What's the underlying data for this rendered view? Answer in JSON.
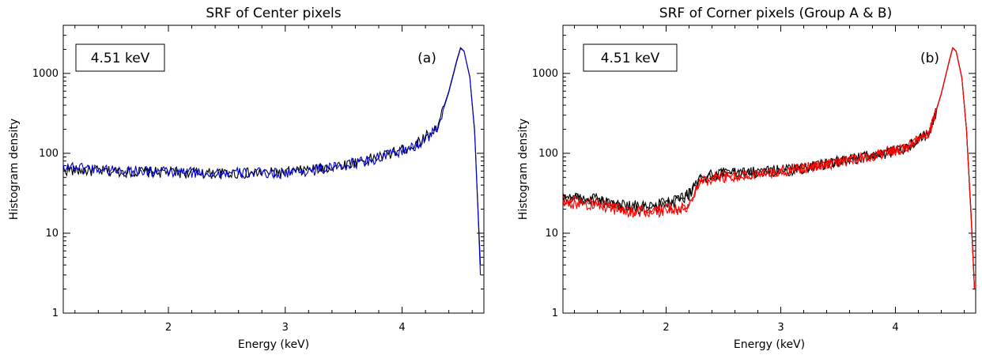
{
  "chart_data": [
    {
      "type": "line",
      "title": "SRF of Center pixels",
      "xlabel": "Energy (keV)",
      "ylabel": "Histogram density",
      "xlim": [
        1.1,
        4.7
      ],
      "ylim": [
        1,
        4000
      ],
      "y_scale": "log",
      "x_ticks": [
        "2",
        "3",
        "4"
      ],
      "y_ticks": [
        "1",
        "10",
        "100",
        "1000"
      ],
      "grid": false,
      "energy_label": "4.51 keV",
      "panel_label": "(a)",
      "series": [
        {
          "color": "#000000",
          "points": [
            [
              1.1,
              62
            ],
            [
              1.5,
              60
            ],
            [
              2.0,
              58
            ],
            [
              2.5,
              56
            ],
            [
              3.0,
              58
            ],
            [
              3.4,
              68
            ],
            [
              3.8,
              90
            ],
            [
              4.1,
              125
            ],
            [
              4.3,
              210
            ],
            [
              4.4,
              600
            ],
            [
              4.47,
              1500
            ],
            [
              4.5,
              2100
            ],
            [
              4.53,
              1900
            ],
            [
              4.58,
              900
            ],
            [
              4.62,
              200
            ],
            [
              4.65,
              20
            ],
            [
              4.67,
              4
            ]
          ]
        },
        {
          "color": "#0000cc",
          "points": [
            [
              1.1,
              70
            ],
            [
              1.5,
              62
            ],
            [
              2.0,
              59
            ],
            [
              2.5,
              57
            ],
            [
              3.0,
              57
            ],
            [
              3.4,
              66
            ],
            [
              3.8,
              88
            ],
            [
              4.1,
              120
            ],
            [
              4.3,
              200
            ],
            [
              4.4,
              580
            ],
            [
              4.47,
              1450
            ],
            [
              4.5,
              2050
            ],
            [
              4.53,
              1900
            ],
            [
              4.58,
              880
            ],
            [
              4.62,
              190
            ],
            [
              4.65,
              18
            ],
            [
              4.67,
              3
            ]
          ]
        }
      ]
    },
    {
      "type": "line",
      "title": "SRF of Corner pixels (Group A & B)",
      "xlabel": "Energy (keV)",
      "ylabel": "Histogram density",
      "xlim": [
        1.1,
        4.7
      ],
      "ylim": [
        1,
        4000
      ],
      "y_scale": "log",
      "x_ticks": [
        "2",
        "3",
        "4"
      ],
      "y_ticks": [
        "1",
        "10",
        "100",
        "1000"
      ],
      "grid": false,
      "energy_label": "4.51 keV",
      "panel_label": "(b)",
      "series": [
        {
          "color": "#000000",
          "points": [
            [
              1.1,
              30
            ],
            [
              1.4,
              25
            ],
            [
              1.7,
              22
            ],
            [
              2.0,
              24
            ],
            [
              2.2,
              32
            ],
            [
              2.3,
              48
            ],
            [
              2.5,
              55
            ],
            [
              3.0,
              62
            ],
            [
              3.4,
              75
            ],
            [
              3.8,
              95
            ],
            [
              4.1,
              120
            ],
            [
              4.3,
              190
            ],
            [
              4.4,
              560
            ],
            [
              4.47,
              1450
            ],
            [
              4.5,
              2100
            ],
            [
              4.53,
              1900
            ],
            [
              4.58,
              880
            ],
            [
              4.62,
              200
            ],
            [
              4.66,
              18
            ],
            [
              4.69,
              2
            ]
          ]
        },
        {
          "color": "#000000",
          "points": [
            [
              1.1,
              28
            ],
            [
              1.4,
              27
            ],
            [
              1.7,
              20
            ],
            [
              2.0,
              22
            ],
            [
              2.2,
              30
            ],
            [
              2.3,
              50
            ],
            [
              2.5,
              58
            ],
            [
              3.0,
              60
            ],
            [
              3.4,
              72
            ],
            [
              3.8,
              92
            ],
            [
              4.1,
              118
            ],
            [
              4.3,
              185
            ],
            [
              4.4,
              550
            ],
            [
              4.47,
              1420
            ],
            [
              4.5,
              2080
            ],
            [
              4.53,
              1880
            ],
            [
              4.58,
              870
            ],
            [
              4.62,
              195
            ],
            [
              4.66,
              16
            ],
            [
              4.69,
              2
            ]
          ]
        },
        {
          "color": "#ff0000",
          "points": [
            [
              1.1,
              26
            ],
            [
              1.4,
              24
            ],
            [
              1.7,
              19
            ],
            [
              2.0,
              19
            ],
            [
              2.2,
              21
            ],
            [
              2.3,
              46
            ],
            [
              2.5,
              52
            ],
            [
              3.0,
              60
            ],
            [
              3.4,
              74
            ],
            [
              3.8,
              94
            ],
            [
              4.1,
              120
            ],
            [
              4.3,
              190
            ],
            [
              4.4,
              560
            ],
            [
              4.47,
              1440
            ],
            [
              4.5,
              2090
            ],
            [
              4.53,
              1890
            ],
            [
              4.58,
              875
            ],
            [
              4.62,
              198
            ],
            [
              4.66,
              17
            ],
            [
              4.69,
              2
            ]
          ]
        },
        {
          "color": "#ff0000",
          "points": [
            [
              1.1,
              24
            ],
            [
              1.4,
              23
            ],
            [
              1.7,
              18
            ],
            [
              2.0,
              20
            ],
            [
              2.2,
              22
            ],
            [
              2.3,
              44
            ],
            [
              2.5,
              50
            ],
            [
              3.0,
              59
            ],
            [
              3.4,
              73
            ],
            [
              3.8,
              93
            ],
            [
              4.1,
              119
            ],
            [
              4.3,
              188
            ],
            [
              4.4,
              555
            ],
            [
              4.47,
              1430
            ],
            [
              4.5,
              2085
            ],
            [
              4.53,
              1885
            ],
            [
              4.58,
              872
            ],
            [
              4.62,
              196
            ],
            [
              4.66,
              17
            ],
            [
              4.69,
              2
            ]
          ]
        }
      ]
    }
  ]
}
